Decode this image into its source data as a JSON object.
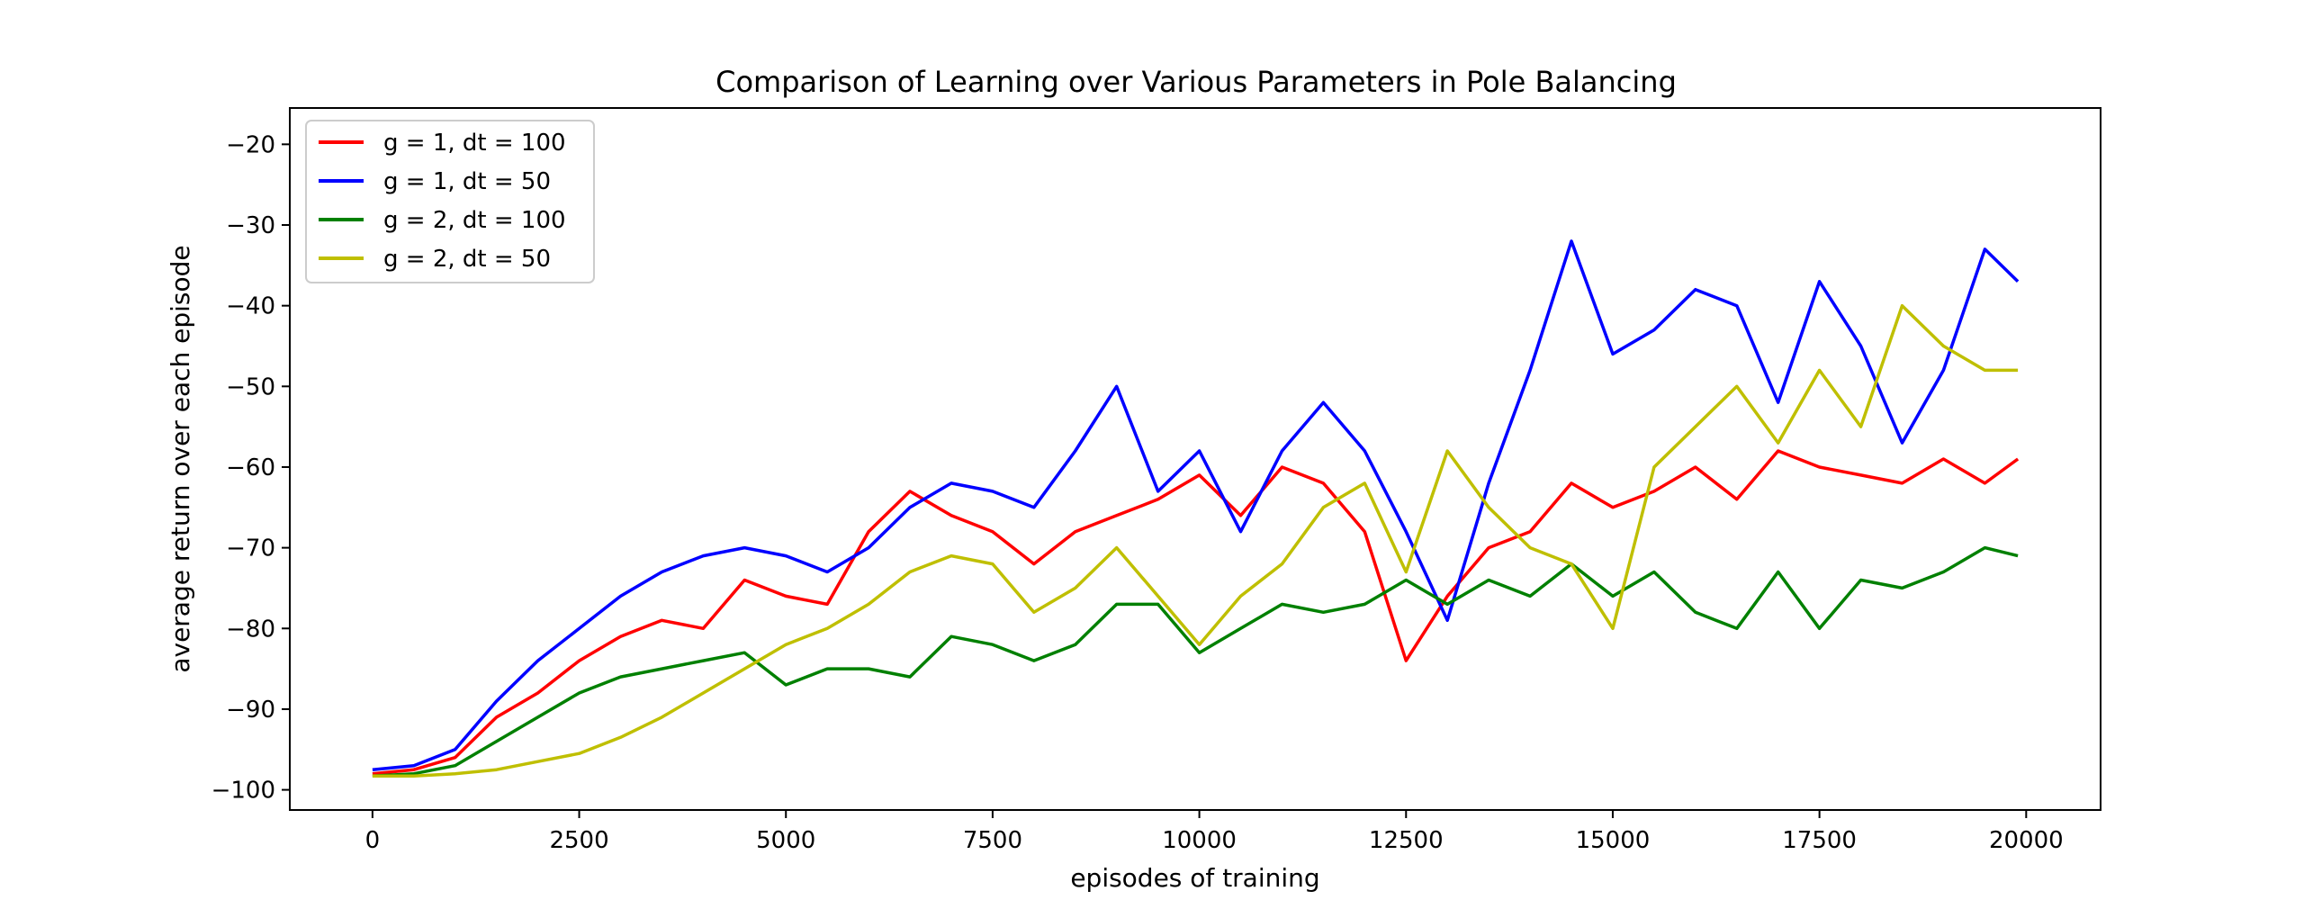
{
  "chart_data": {
    "type": "line",
    "title": "Comparison of Learning over Various Parameters in Pole Balancing",
    "xlabel": "episodes of training",
    "ylabel": "average return over each episode",
    "xlim": [
      -1000,
      20900
    ],
    "ylim": [
      -102.5,
      -15.5
    ],
    "xticks": [
      0,
      2500,
      5000,
      7500,
      10000,
      12500,
      15000,
      17500,
      20000
    ],
    "yticks": [
      -100,
      -90,
      -80,
      -70,
      -60,
      -50,
      -40,
      -30,
      -20
    ],
    "grid": false,
    "legend_position": "top-left",
    "series": [
      {
        "name": "g = 1, dt = 100",
        "color": "#ff0000",
        "x": [
          0,
          500,
          1000,
          1500,
          2000,
          2500,
          3000,
          3500,
          4000,
          4500,
          5000,
          5500,
          6000,
          6500,
          7000,
          7500,
          8000,
          8500,
          9000,
          9500,
          10000,
          10500,
          11000,
          11500,
          12000,
          12500,
          13000,
          13500,
          14000,
          14500,
          15000,
          15500,
          16000,
          16500,
          17000,
          17500,
          18000,
          18500,
          19000,
          19500,
          19900
        ],
        "y": [
          -98,
          -97.5,
          -96,
          -91,
          -88,
          -84,
          -81,
          -79,
          -80,
          -74,
          -76,
          -77,
          -68,
          -63,
          -66,
          -68,
          -72,
          -68,
          -66,
          -64,
          -61,
          -66,
          -60,
          -62,
          -68,
          -84,
          -76,
          -70,
          -68,
          -62,
          -65,
          -63,
          -60,
          -64,
          -58,
          -60,
          -61,
          -62,
          -59,
          -62,
          -59
        ]
      },
      {
        "name": "g = 1, dt = 50",
        "color": "#0000ff",
        "x": [
          0,
          500,
          1000,
          1500,
          2000,
          2500,
          3000,
          3500,
          4000,
          4500,
          5000,
          5500,
          6000,
          6500,
          7000,
          7500,
          8000,
          8500,
          9000,
          9500,
          10000,
          10500,
          11000,
          11500,
          12000,
          12500,
          13000,
          13500,
          14000,
          14500,
          15000,
          15500,
          16000,
          16500,
          17000,
          17500,
          18000,
          18500,
          19000,
          19500,
          19900
        ],
        "y": [
          -97.5,
          -97,
          -95,
          -89,
          -84,
          -80,
          -76,
          -73,
          -71,
          -70,
          -71,
          -73,
          -70,
          -65,
          -62,
          -63,
          -65,
          -58,
          -50,
          -63,
          -58,
          -68,
          -58,
          -52,
          -58,
          -68,
          -79,
          -62,
          -48,
          -32,
          -46,
          -43,
          -38,
          -40,
          -52,
          -37,
          -45,
          -57,
          -48,
          -33,
          -37
        ]
      },
      {
        "name": "g = 2, dt = 100",
        "color": "#008000",
        "x": [
          0,
          500,
          1000,
          1500,
          2000,
          2500,
          3000,
          3500,
          4000,
          4500,
          5000,
          5500,
          6000,
          6500,
          7000,
          7500,
          8000,
          8500,
          9000,
          9500,
          10000,
          10500,
          11000,
          11500,
          12000,
          12500,
          13000,
          13500,
          14000,
          14500,
          15000,
          15500,
          16000,
          16500,
          17000,
          17500,
          18000,
          18500,
          19000,
          19500,
          19900
        ],
        "y": [
          -98.3,
          -98,
          -97,
          -94,
          -91,
          -88,
          -86,
          -85,
          -84,
          -83,
          -87,
          -85,
          -85,
          -86,
          -81,
          -82,
          -84,
          -82,
          -77,
          -77,
          -83,
          -80,
          -77,
          -78,
          -77,
          -74,
          -77,
          -74,
          -76,
          -72,
          -76,
          -73,
          -78,
          -80,
          -73,
          -80,
          -74,
          -75,
          -73,
          -70,
          -71
        ]
      },
      {
        "name": "g = 2, dt = 50",
        "color": "#bfbf00",
        "x": [
          0,
          500,
          1000,
          1500,
          2000,
          2500,
          3000,
          3500,
          4000,
          4500,
          5000,
          5500,
          6000,
          6500,
          7000,
          7500,
          8000,
          8500,
          9000,
          9500,
          10000,
          10500,
          11000,
          11500,
          12000,
          12500,
          13000,
          13500,
          14000,
          14500,
          15000,
          15500,
          16000,
          16500,
          17000,
          17500,
          18000,
          18500,
          19000,
          19500,
          19900
        ],
        "y": [
          -98.3,
          -98.3,
          -98,
          -97.5,
          -96.5,
          -95.5,
          -93.5,
          -91,
          -88,
          -85,
          -82,
          -80,
          -77,
          -73,
          -71,
          -72,
          -78,
          -75,
          -70,
          -76,
          -82,
          -76,
          -72,
          -65,
          -62,
          -73,
          -58,
          -65,
          -70,
          -72,
          -80,
          -60,
          -55,
          -50,
          -57,
          -48,
          -55,
          -40,
          -45,
          -48,
          -48
        ]
      }
    ]
  }
}
